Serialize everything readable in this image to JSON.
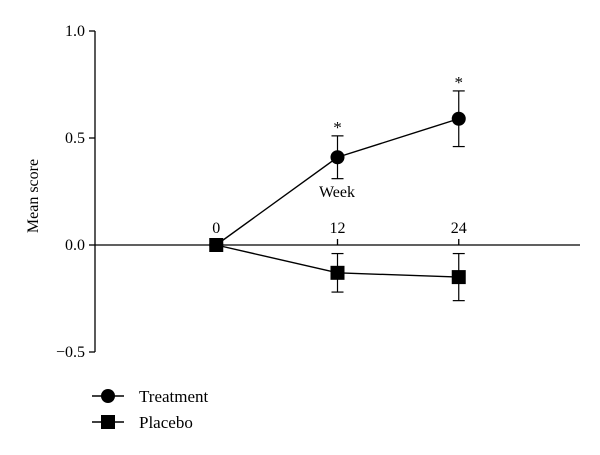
{
  "chart_data": {
    "type": "line",
    "title": "",
    "ylabel": "Mean score",
    "xlabel": "Week",
    "x": [
      0,
      12,
      24
    ],
    "x_tick_labels": [
      "0",
      "12",
      "24"
    ],
    "xlim": [
      -12,
      36
    ],
    "ylim": [
      -0.5,
      1.0
    ],
    "y_ticks": [
      -0.5,
      0.0,
      0.5,
      1.0
    ],
    "y_tick_labels": [
      "−0.5",
      "0.0",
      "0.5",
      "1.0"
    ],
    "grid": false,
    "legend_position": "bottom-left",
    "series": [
      {
        "name": "Treatment",
        "marker": "circle",
        "values": [
          0.0,
          0.41,
          0.59
        ],
        "error": [
          0.0,
          0.1,
          0.13
        ],
        "significance": [
          "",
          "*",
          "*"
        ]
      },
      {
        "name": "Placebo",
        "marker": "square",
        "values": [
          0.0,
          -0.13,
          -0.15
        ],
        "error": [
          0.0,
          0.09,
          0.11
        ],
        "significance": [
          "",
          "",
          ""
        ]
      }
    ]
  },
  "colors": {
    "ink": "#000000",
    "background": "#ffffff"
  }
}
